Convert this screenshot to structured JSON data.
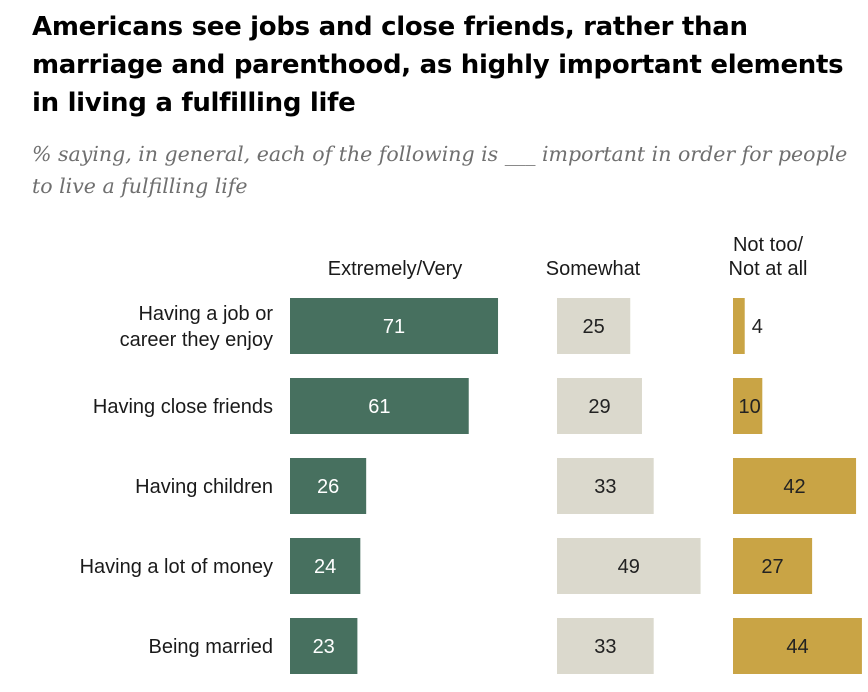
{
  "title": "Americans see jobs and close friends, rather than marriage and parenthood, as highly important elements in living a fulfilling life",
  "subtitle": "% saying, in general, each of the following is ___ important in order for people to live a fulfilling life",
  "chart_data": {
    "type": "bar",
    "orientation": "horizontal",
    "layout": "grouped-panels",
    "title": "Americans see jobs and close friends, rather than marriage and parenthood, as highly important elements in living a fulfilling life",
    "subtitle": "% saying, in general, each of the following is ___ important in order for people to live a fulfilling life",
    "categories": [
      [
        "Having a job or",
        "career they enjoy"
      ],
      [
        "Having close friends"
      ],
      [
        "Having children"
      ],
      [
        "Having a lot of money"
      ],
      [
        "Being married"
      ]
    ],
    "series": [
      {
        "name": "Extremely/Very",
        "header": [
          "Extremely/Very"
        ],
        "values": [
          71,
          61,
          26,
          24,
          23
        ],
        "color": "#47705f",
        "label_color": "#ffffff"
      },
      {
        "name": "Somewhat",
        "header": [
          "Somewhat"
        ],
        "values": [
          25,
          29,
          33,
          49,
          33
        ],
        "color": "#dbd9cd",
        "label_color": "#222222"
      },
      {
        "name": "Not too/ Not at all",
        "header": [
          "Not too/",
          "Not at all"
        ],
        "values": [
          4,
          10,
          42,
          27,
          44
        ],
        "color": "#c9a445",
        "label_color": "#222222"
      }
    ],
    "xlabel": "",
    "ylabel": "",
    "grid": false,
    "legend": "column headers above panels"
  }
}
